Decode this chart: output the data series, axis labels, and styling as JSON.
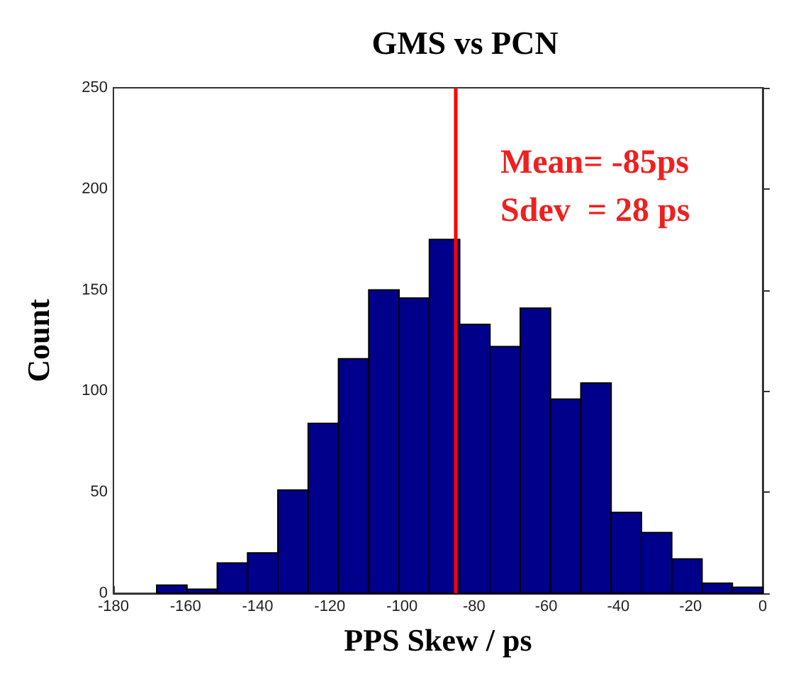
{
  "chart_data": {
    "type": "histogram",
    "title": "GMS vs PCN",
    "xlabel": "PPS Skew / ps",
    "ylabel": "Count",
    "bins": [
      -168,
      -159.6,
      -151.2,
      -142.8,
      -134.4,
      -126,
      -117.6,
      -109.2,
      -100.8,
      -92.4,
      -84,
      -75.6,
      -67.2,
      -58.8,
      -50.4,
      -42,
      -33.6,
      -25.2,
      -16.8,
      -8.4,
      0
    ],
    "values": [
      4,
      2,
      15,
      20,
      51,
      84,
      116,
      150,
      146,
      175,
      133,
      122,
      141,
      96,
      104,
      40,
      30,
      17,
      5,
      3
    ],
    "color": "#00008b",
    "xlim": [
      -180,
      0
    ],
    "xticks": [
      -180,
      -160,
      -140,
      -120,
      -100,
      -80,
      -60,
      -40,
      -20,
      0
    ],
    "ylim": [
      0,
      250
    ],
    "yticks": [
      0,
      50,
      100,
      150,
      200,
      250
    ],
    "ref_lines": [
      {
        "axis": "x",
        "value": -85,
        "color": "#ff0000"
      }
    ],
    "annotations": [
      "Mean= -85ps",
      "Sdev  = 28 ps"
    ],
    "grid": false
  }
}
